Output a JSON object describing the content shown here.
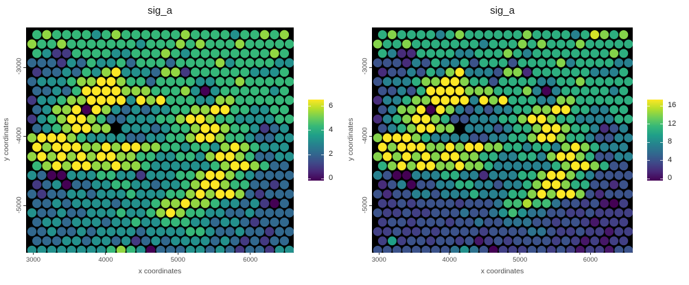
{
  "figure": {
    "background": "#ffffff",
    "panel_background": "#000000"
  },
  "palette": {
    "name": "viridis",
    "stops": [
      "#440154",
      "#482878",
      "#3e4a89",
      "#31688e",
      "#26828e",
      "#1f9e89",
      "#35b779",
      "#6ece58",
      "#b5de2b",
      "#fde725"
    ]
  },
  "chart_data": [
    {
      "type": "scatter",
      "title": "sig_a",
      "xlabel": "x coordinates",
      "ylabel": "y coordinates",
      "x_ticks": [
        3000,
        4000,
        5000,
        6000
      ],
      "y_ticks": [
        -3000,
        -4000,
        -5000
      ],
      "x_range": [
        2900,
        6600
      ],
      "y_range": [
        -2420,
        -5680
      ],
      "grid_on": false,
      "legend_position": "right",
      "colorbar_ticks": [
        0,
        2,
        4,
        6
      ],
      "vmax": 6,
      "value_encoding": "each char is one spot value: 0-9 then A=10..G=16, x = missing spot; rows top to bottom on a hex-offset lattice",
      "spot_rows": [
        "45444434544444454444344545",
        "54454444444344454544454444",
        "43114444334445434444444454",
        "22213243342444244445344443",
        "12232435633325514444443334",
        "23334556654424444334454444",
        "22324666655544453034444434",
        "13345566663656444335544444",
        "23556065323233445566443344",
        "13456654223334456654433334",
        "23456655x33323445665443123",
        "56665433332233445665443223",
        "65666556566554434435654333",
        "56565656655443344356654223",
        "45656655655433333345665422",
        "32003334433133344566543222",
        "12302233443323345665442212",
        "21223323334333445656652122",
        "22323333233345565543323102",
        "32232233343345654433223222",
        "23323332334334443323321222",
        "22322323333233334432232212",
        "22233233231232333323212122",
        "33333333454302223323212213"
      ]
    },
    {
      "type": "scatter",
      "title": "sig_a",
      "xlabel": "x coordinates",
      "ylabel": "y coordinates",
      "x_ticks": [
        3000,
        4000,
        5000,
        6000
      ],
      "y_ticks": [
        -3000,
        -4000,
        -5000
      ],
      "x_range": [
        2900,
        6600
      ],
      "y_range": [
        -2420,
        -5680
      ],
      "grid_on": false,
      "legend_position": "right",
      "colorbar_ticks": [
        0,
        4,
        8,
        12,
        16
      ],
      "vmax": 16,
      "value_encoding": "each char is one spot value: 0-9 then A=10..G=16, x = missing spot; rows top to bottom on a hex-offset lattice",
      "spot_rows": [
        "ADAAAA7ADAAAAAADAAAA7AFDAD",
        "DAADAAAAAAA7AAADADAAADAAAA",
        "A722AAAA77AAADA7AAAAAAAADA",
        "444274A77A4AAA4AAAAD7AAAA7",
        "24474A7DG7774DD2AAAAAA777A",
        "4777ADDGGDAA4AAAA77AADAAAA",
        "4474AGGGGDDDAAAD707AAAAA7A",
        "277ADDGGGG7GDGAAA77DDAAAAA",
        "47DDG0GD747477AADDGGAA77AA",
        "27ADGGDA44777AADGGDAA7777A",
        "47ADGGDDx77747AADGGDAA7247",
        "DGGGDA77774477AADGGDAA7447",
        "GDGGGDDGDGGDDAA7AA7DGDA777",
        "DGDGDGDGGDDAA77AA7DGGDA447",
        "ADGDGGDDGDDA777777ADGGDA44",
        "7400777AA772777AADGGDA7444",
        "24704477AA77477ADGGDAA4424",
        "4244774777A777AADGDGGD4244",
        "3343444434446BBEBB64434103",
        "43343344464468B86644334333",
        "34434443446446664434431333",
        "33433434444344446643343313",
        "39344344341343444434313133",
        "44444444686403334434313314"
      ]
    }
  ]
}
